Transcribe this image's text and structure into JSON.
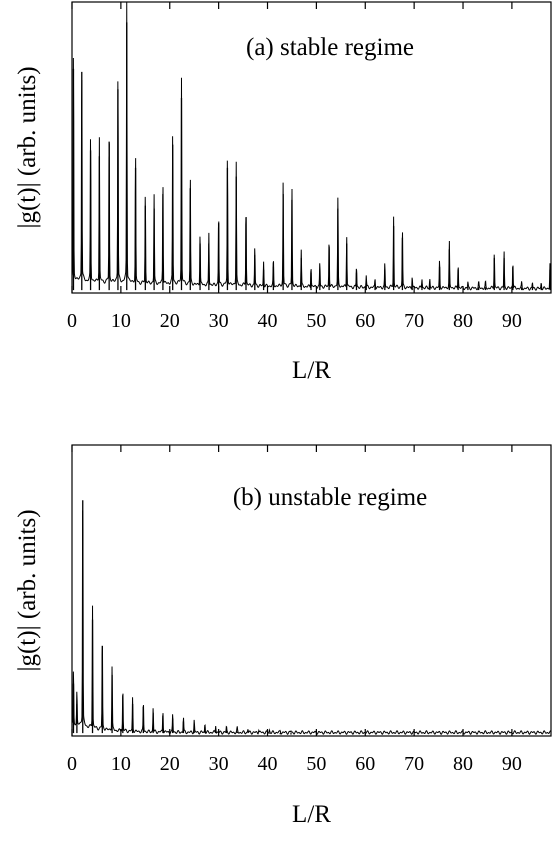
{
  "chart_data": [
    {
      "type": "line",
      "title": "(a) stable regime",
      "xlabel": "L/R",
      "ylabel": "|g(t)| (arb. units)",
      "xlim": [
        0,
        98
      ],
      "ylim": [
        0,
        1
      ],
      "xticks": [
        0,
        10,
        20,
        30,
        40,
        50,
        60,
        70,
        80,
        90
      ],
      "xtick_labels": [
        "0",
        "10",
        "20",
        "30",
        "40",
        "50",
        "60",
        "70",
        "80",
        "90"
      ],
      "grid": false,
      "series": [
        {
          "peaks": [
            [
              0.3,
              0.77
            ],
            [
              2.0,
              0.76
            ],
            [
              3.8,
              0.49
            ],
            [
              5.6,
              0.47
            ],
            [
              7.6,
              0.52
            ],
            [
              9.4,
              0.7
            ],
            [
              11.2,
              0.93
            ],
            [
              13.0,
              0.43
            ],
            [
              15.0,
              0.3
            ],
            [
              16.8,
              0.29
            ],
            [
              18.6,
              0.34
            ],
            [
              20.6,
              0.51
            ],
            [
              22.4,
              0.67
            ],
            [
              24.2,
              0.36
            ],
            [
              26.2,
              0.17
            ],
            [
              28.0,
              0.17
            ],
            [
              30.0,
              0.24
            ],
            [
              31.8,
              0.43
            ],
            [
              33.6,
              0.4
            ],
            [
              35.6,
              0.26
            ],
            [
              37.4,
              0.13
            ],
            [
              39.2,
              0.08
            ],
            [
              41.2,
              0.09
            ],
            [
              43.2,
              0.34
            ],
            [
              45.0,
              0.32
            ],
            [
              46.9,
              0.12
            ],
            [
              48.9,
              0.07
            ],
            [
              50.7,
              0.08
            ],
            [
              52.6,
              0.16
            ],
            [
              54.4,
              0.29
            ],
            [
              56.2,
              0.17
            ],
            [
              58.2,
              0.07
            ],
            [
              60.2,
              0.04
            ],
            [
              62.0,
              0.03
            ],
            [
              64.0,
              0.08
            ],
            [
              65.8,
              0.23
            ],
            [
              67.6,
              0.19
            ],
            [
              69.6,
              0.04
            ],
            [
              71.6,
              0.03
            ],
            [
              73.2,
              0.03
            ],
            [
              75.2,
              0.09
            ],
            [
              77.2,
              0.15
            ],
            [
              79.0,
              0.08
            ],
            [
              81.0,
              0.02
            ],
            [
              83.2,
              0.02
            ],
            [
              84.6,
              0.02
            ],
            [
              86.4,
              0.12
            ],
            [
              88.4,
              0.12
            ],
            [
              90.2,
              0.09
            ],
            [
              92.0,
              0.02
            ],
            [
              94.2,
              0.02
            ],
            [
              96.0,
              0.02
            ],
            [
              97.8,
              0.08
            ]
          ]
        }
      ]
    },
    {
      "type": "line",
      "title": "(b) unstable regime",
      "xlabel": "L/R",
      "ylabel": "|g(t)| (arb. units)",
      "xlim": [
        0,
        98
      ],
      "ylim": [
        0,
        1
      ],
      "xticks": [
        0,
        10,
        20,
        30,
        40,
        50,
        60,
        70,
        80,
        90
      ],
      "xtick_labels": [
        "0",
        "10",
        "20",
        "30",
        "40",
        "50",
        "60",
        "70",
        "80",
        "90"
      ],
      "grid": false,
      "series": [
        {
          "peaks": [
            [
              0.3,
              0.18
            ],
            [
              1.0,
              0.11
            ],
            [
              2.2,
              0.81
            ],
            [
              4.2,
              0.4
            ],
            [
              6.2,
              0.31
            ],
            [
              8.2,
              0.21
            ],
            [
              10.4,
              0.14
            ],
            [
              12.4,
              0.11
            ],
            [
              14.6,
              0.1
            ],
            [
              16.6,
              0.08
            ],
            [
              18.6,
              0.07
            ],
            [
              20.6,
              0.06
            ],
            [
              22.8,
              0.05
            ],
            [
              25.0,
              0.04
            ],
            [
              27.2,
              0.03
            ],
            [
              29.4,
              0.025
            ],
            [
              31.6,
              0.02
            ],
            [
              33.8,
              0.015
            ],
            [
              36.0,
              0.012
            ],
            [
              38.2,
              0.01
            ],
            [
              40.4,
              0.008
            ],
            [
              42.6,
              0.006
            ],
            [
              44.8,
              0.005
            ]
          ]
        }
      ]
    }
  ]
}
